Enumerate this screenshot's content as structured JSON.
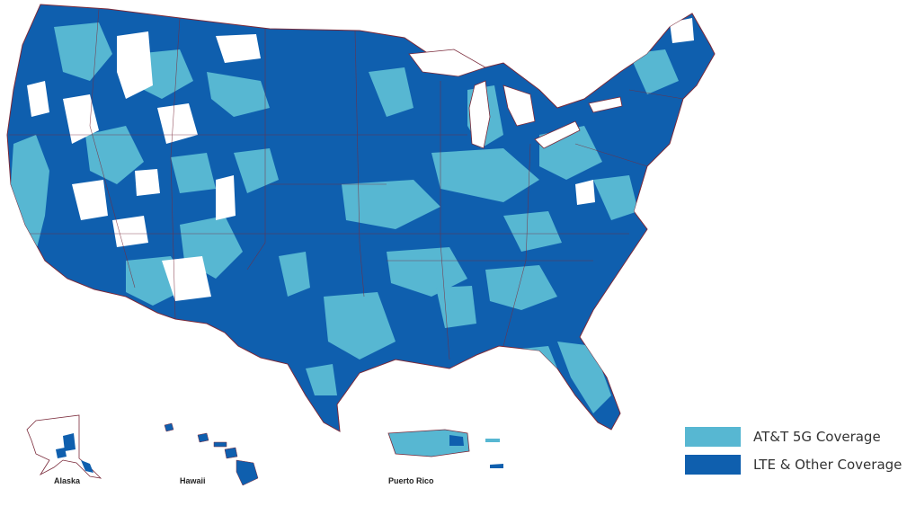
{
  "colors": {
    "fiveg": "#57b7d2",
    "lte": "#0f5fae",
    "border": "#7a2a3a",
    "background": "#ffffff"
  },
  "insets": {
    "alaska": "Alaska",
    "hawaii": "Hawaii",
    "puerto_rico": "Puerto Rico"
  },
  "legend": {
    "items": [
      {
        "label": "AT&T 5G Coverage",
        "color": "#57b7d2"
      },
      {
        "label": "LTE & Other Coverage",
        "color": "#0f5fae"
      }
    ]
  }
}
